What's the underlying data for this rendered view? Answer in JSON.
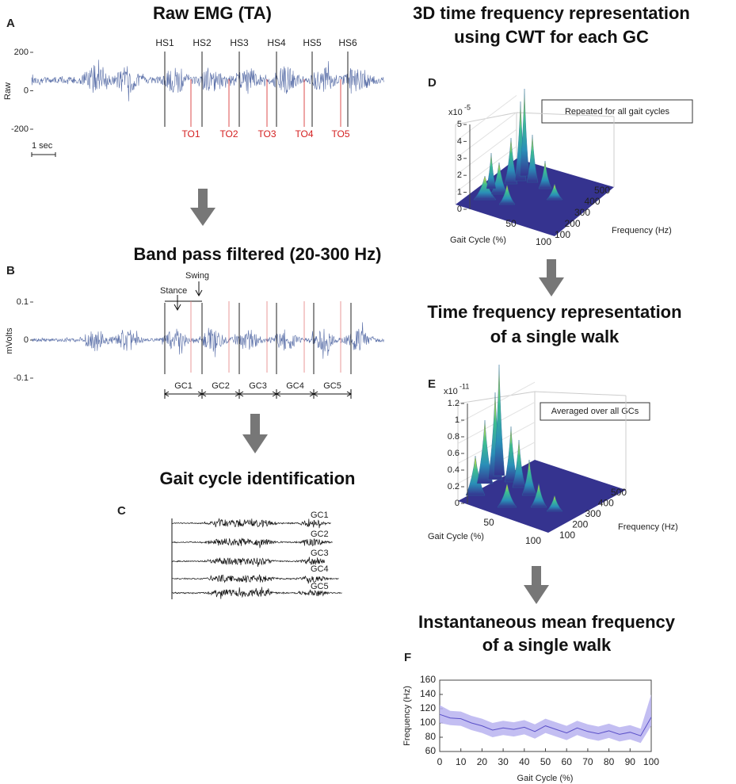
{
  "panel_a": {
    "letter": "A",
    "title": "Raw EMG (TA)",
    "y_label": "Raw",
    "yticks": [
      200,
      0,
      -200
    ],
    "heel_strikes": [
      "HS1",
      "HS2",
      "HS3",
      "HS4",
      "HS5",
      "HS6"
    ],
    "toe_offs": [
      "TO1",
      "TO2",
      "TO3",
      "TO4",
      "TO5"
    ],
    "scale_bar": "1 sec"
  },
  "panel_b": {
    "letter": "B",
    "title": "Band pass filtered (20-300 Hz)",
    "y_label": "mVolts",
    "yticks": [
      0.1,
      0,
      -0.1
    ],
    "stance": "Stance",
    "swing": "Swing",
    "gait_cycles": [
      "GC1",
      "GC2",
      "GC3",
      "GC4",
      "GC5"
    ]
  },
  "panel_c": {
    "letter": "C",
    "title": "Gait cycle identification",
    "gait_cycles": [
      "GC1",
      "GC2",
      "GC3",
      "GC4",
      "GC5"
    ]
  },
  "panel_d": {
    "heading": [
      "3D time frequency representation",
      "using CWT for each GC"
    ],
    "letter": "D",
    "exponent_base": "x10",
    "exponent": "-5",
    "zticks": [
      5,
      4,
      3,
      2,
      1,
      0
    ],
    "note": "Repeated for all gait cycles",
    "x_label": "Gait Cycle (%)",
    "xticks": [
      50,
      100
    ],
    "y_label": "Frequency (Hz)",
    "yticks": [
      500,
      400,
      300,
      200,
      100
    ]
  },
  "panel_e": {
    "heading": [
      "Time frequency representation",
      "of a single walk"
    ],
    "letter": "E",
    "exponent_base": "x10",
    "exponent": "-11",
    "zticks": [
      1.2,
      1,
      0.8,
      0.6,
      0.4,
      0.2,
      0
    ],
    "note": "Averaged over all GCs",
    "x_label": "Gait Cycle (%)",
    "xticks": [
      50,
      100
    ],
    "y_label": "Frequency (Hz)",
    "yticks": [
      500,
      400,
      300,
      200,
      100
    ]
  },
  "panel_f": {
    "heading": [
      "Instantaneous mean frequency",
      "of a single walk"
    ],
    "letter": "F",
    "y_label": "Frequency (Hz)",
    "x_label": "Gait Cycle (%)",
    "xlim": [
      0,
      100
    ],
    "ylim": [
      60,
      160
    ],
    "xticks": [
      0,
      10,
      20,
      30,
      40,
      50,
      60,
      70,
      80,
      90,
      100
    ],
    "yticks": [
      60,
      80,
      100,
      120,
      140,
      160
    ],
    "x": [
      0,
      5,
      10,
      15,
      20,
      25,
      30,
      35,
      40,
      45,
      50,
      55,
      60,
      65,
      70,
      75,
      80,
      85,
      90,
      95,
      100
    ],
    "mean": [
      112,
      107,
      106,
      100,
      96,
      90,
      93,
      91,
      94,
      88,
      96,
      91,
      86,
      93,
      88,
      85,
      89,
      84,
      87,
      82,
      108
    ],
    "upper": [
      125,
      117,
      116,
      110,
      106,
      100,
      103,
      101,
      104,
      98,
      106,
      101,
      96,
      103,
      98,
      95,
      99,
      94,
      97,
      92,
      140
    ],
    "lower": [
      100,
      97,
      96,
      90,
      86,
      80,
      83,
      81,
      84,
      78,
      86,
      81,
      76,
      83,
      78,
      75,
      79,
      74,
      77,
      72,
      96
    ]
  }
}
